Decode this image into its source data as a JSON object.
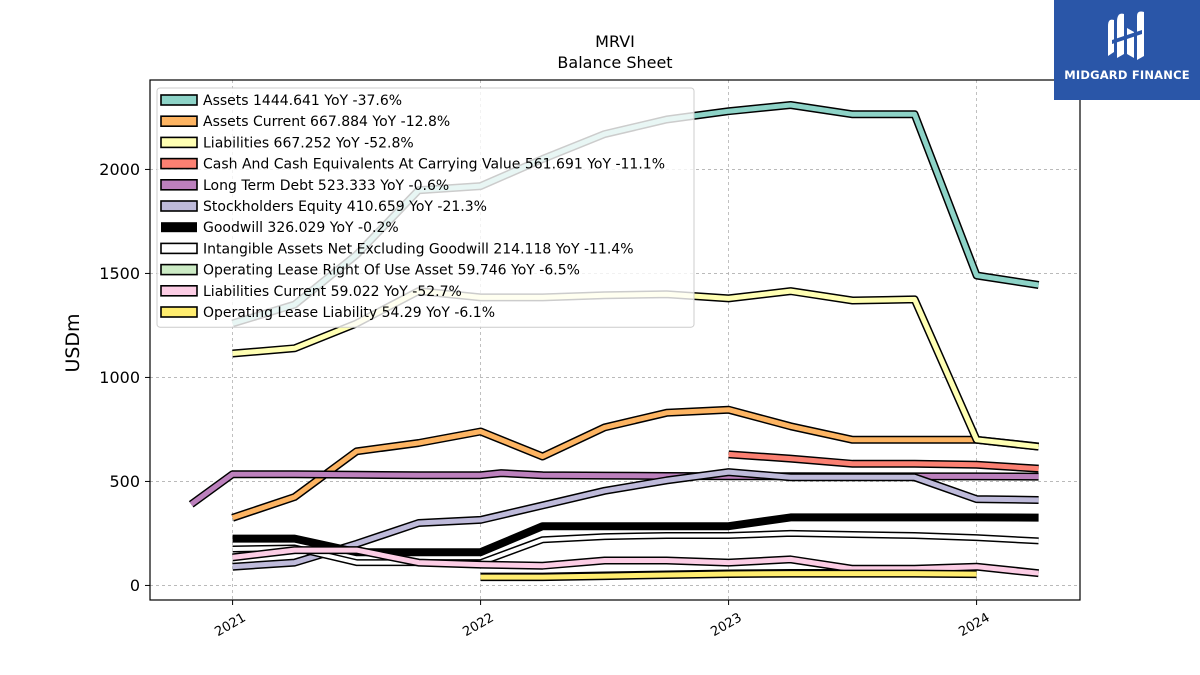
{
  "logo": {
    "text": "MIDGARD FINANCE"
  },
  "chart_data": {
    "type": "line",
    "title": "MRVI",
    "subtitle": "Balance  Sheet",
    "xlabel": "",
    "ylabel": "USDm",
    "xlim": [
      2020.667,
      2024.417
    ],
    "ylim": [
      -70,
      2430
    ],
    "yticks": [
      0,
      500,
      1000,
      1500,
      2000
    ],
    "xticks": [
      {
        "value": 2021,
        "label": "2021"
      },
      {
        "value": 2022,
        "label": "2022"
      },
      {
        "value": 2023,
        "label": "2023"
      },
      {
        "value": 2024,
        "label": "2024"
      }
    ],
    "grid": true,
    "legend_position": "top-left",
    "series": [
      {
        "name": "Assets",
        "legend": "Assets  1444.641 YoY -37.6%",
        "color": "#8dd3c7",
        "width": 5,
        "points": [
          [
            2021.0,
            1260
          ],
          [
            2021.25,
            1350
          ],
          [
            2021.5,
            1590
          ],
          [
            2021.75,
            1900
          ],
          [
            2022.0,
            1920
          ],
          [
            2022.25,
            2050
          ],
          [
            2022.5,
            2170
          ],
          [
            2022.75,
            2240
          ],
          [
            2023.0,
            2280
          ],
          [
            2023.25,
            2310
          ],
          [
            2023.5,
            2265
          ],
          [
            2023.75,
            2265
          ],
          [
            2024.0,
            1490
          ],
          [
            2024.25,
            1444.641
          ]
        ]
      },
      {
        "name": "Assets Current",
        "legend": "Assets Current  667.884 YoY -12.8%",
        "color": "#fdb462",
        "width": 5,
        "points": [
          [
            2021.0,
            325
          ],
          [
            2021.25,
            425
          ],
          [
            2021.5,
            645
          ],
          [
            2021.75,
            685
          ],
          [
            2022.0,
            740
          ],
          [
            2022.25,
            620
          ],
          [
            2022.5,
            760
          ],
          [
            2022.75,
            830
          ],
          [
            2023.0,
            845
          ],
          [
            2023.25,
            765
          ],
          [
            2023.5,
            700
          ],
          [
            2023.75,
            700
          ],
          [
            2024.0,
            700
          ],
          [
            2024.25,
            667.884
          ]
        ]
      },
      {
        "name": "Liabilities",
        "legend": "Liabilities  667.252 YoY -52.8%",
        "color": "#ffffb3",
        "width": 5,
        "points": [
          [
            2021.0,
            1115
          ],
          [
            2021.25,
            1140
          ],
          [
            2021.5,
            1260
          ],
          [
            2021.75,
            1415
          ],
          [
            2022.0,
            1385
          ],
          [
            2022.25,
            1385
          ],
          [
            2022.5,
            1395
          ],
          [
            2022.75,
            1400
          ],
          [
            2023.0,
            1380
          ],
          [
            2023.25,
            1415
          ],
          [
            2023.5,
            1370
          ],
          [
            2023.75,
            1375
          ],
          [
            2024.0,
            700
          ],
          [
            2024.25,
            667.252
          ]
        ]
      },
      {
        "name": "Cash And Cash Equivalents At Carrying Value",
        "legend": "Cash And Cash Equivalents At Carrying Value  561.691 YoY -11.1%",
        "color": "#fb8072",
        "width": 5,
        "points": [
          [
            2023.0,
            630
          ],
          [
            2023.25,
            610
          ],
          [
            2023.5,
            585
          ],
          [
            2023.75,
            585
          ],
          [
            2024.0,
            580
          ],
          [
            2024.25,
            561.691
          ]
        ]
      },
      {
        "name": "Long Term Debt",
        "legend": "Long Term Debt  523.333 YoY -0.6%",
        "color": "#bc80bd",
        "width": 5,
        "points": [
          [
            2020.833,
            390
          ],
          [
            2021.0,
            535
          ],
          [
            2021.25,
            535
          ],
          [
            2021.5,
            532
          ],
          [
            2021.75,
            530
          ],
          [
            2022.0,
            530
          ],
          [
            2022.083,
            540
          ],
          [
            2022.25,
            530
          ],
          [
            2022.5,
            528
          ],
          [
            2022.75,
            526
          ],
          [
            2023.0,
            525
          ],
          [
            2023.25,
            525
          ],
          [
            2023.5,
            524
          ],
          [
            2023.75,
            524
          ],
          [
            2024.0,
            524
          ],
          [
            2024.25,
            523.333
          ]
        ]
      },
      {
        "name": "Stockholders Equity",
        "legend": "Stockholders Equity  410.659 YoY -21.3%",
        "color": "#bebada",
        "width": 5,
        "points": [
          [
            2021.0,
            90
          ],
          [
            2021.25,
            110
          ],
          [
            2021.5,
            200
          ],
          [
            2021.75,
            300
          ],
          [
            2022.0,
            315
          ],
          [
            2022.25,
            385
          ],
          [
            2022.5,
            455
          ],
          [
            2022.75,
            505
          ],
          [
            2023.0,
            545
          ],
          [
            2023.25,
            520
          ],
          [
            2023.5,
            520
          ],
          [
            2023.75,
            520
          ],
          [
            2024.0,
            415
          ],
          [
            2024.25,
            410.659
          ]
        ]
      },
      {
        "name": "Goodwill",
        "legend": "Goodwill  326.029 YoY -0.2%",
        "color": "#000000",
        "width": 8,
        "plain": true,
        "points": [
          [
            2021.0,
            225
          ],
          [
            2021.25,
            225
          ],
          [
            2021.5,
            160
          ],
          [
            2021.75,
            160
          ],
          [
            2022.0,
            160
          ],
          [
            2022.25,
            285
          ],
          [
            2022.5,
            285
          ],
          [
            2022.75,
            285
          ],
          [
            2023.0,
            285
          ],
          [
            2023.25,
            327
          ],
          [
            2023.5,
            327
          ],
          [
            2023.75,
            327
          ],
          [
            2024.0,
            327
          ],
          [
            2024.25,
            326.029
          ]
        ]
      },
      {
        "name": "Intangible Assets Net Excluding Goodwill",
        "legend": "Intangible Assets Net Excluding Goodwill  214.118 YoY -11.4%",
        "color": "#ffffff",
        "width": 4,
        "points": [
          [
            2021.0,
            175
          ],
          [
            2021.25,
            180
          ],
          [
            2021.5,
            110
          ],
          [
            2021.75,
            110
          ],
          [
            2022.0,
            110
          ],
          [
            2022.25,
            220
          ],
          [
            2022.5,
            235
          ],
          [
            2022.75,
            240
          ],
          [
            2023.0,
            240
          ],
          [
            2023.25,
            250
          ],
          [
            2023.5,
            245
          ],
          [
            2023.75,
            240
          ],
          [
            2024.0,
            230
          ],
          [
            2024.25,
            214.118
          ]
        ]
      },
      {
        "name": "Operating Lease Right Of Use Asset",
        "legend": "Operating Lease Right Of Use Asset  59.746 YoY -6.5%",
        "color": "#ccebc5",
        "width": 4,
        "points": [
          [
            2022.0,
            45
          ],
          [
            2022.25,
            45
          ],
          [
            2022.5,
            50
          ],
          [
            2022.75,
            55
          ],
          [
            2023.0,
            60
          ],
          [
            2023.25,
            62
          ],
          [
            2023.5,
            62
          ],
          [
            2023.75,
            62
          ],
          [
            2024.0,
            59.746
          ]
        ]
      },
      {
        "name": "Liabilities Current",
        "legend": "Liabilities Current  59.022 YoY -52.7%",
        "color": "#fccde5",
        "width": 5,
        "points": [
          [
            2021.0,
            135
          ],
          [
            2021.25,
            170
          ],
          [
            2021.5,
            170
          ],
          [
            2021.75,
            110
          ],
          [
            2022.0,
            100
          ],
          [
            2022.25,
            95
          ],
          [
            2022.5,
            120
          ],
          [
            2022.75,
            120
          ],
          [
            2023.0,
            110
          ],
          [
            2023.25,
            125
          ],
          [
            2023.5,
            80
          ],
          [
            2023.75,
            80
          ],
          [
            2024.0,
            90
          ],
          [
            2024.25,
            59.022
          ]
        ]
      },
      {
        "name": "Operating Lease Liability",
        "legend": "Operating Lease Liability  54.29 YoY -6.1%",
        "color": "#ffed6f",
        "width": 5,
        "points": [
          [
            2022.0,
            40
          ],
          [
            2022.25,
            40
          ],
          [
            2022.5,
            45
          ],
          [
            2022.75,
            50
          ],
          [
            2023.0,
            55
          ],
          [
            2023.25,
            57
          ],
          [
            2023.5,
            57
          ],
          [
            2023.75,
            57
          ],
          [
            2024.0,
            54.29
          ]
        ]
      }
    ]
  }
}
